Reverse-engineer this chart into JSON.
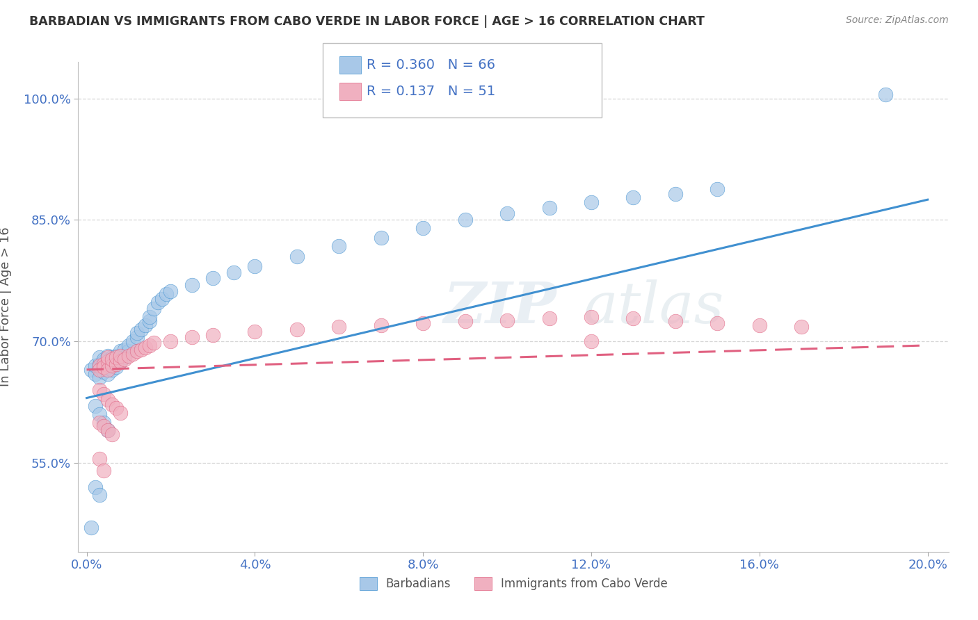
{
  "title": "BARBADIAN VS IMMIGRANTS FROM CABO VERDE IN LABOR FORCE | AGE > 16 CORRELATION CHART",
  "source": "Source: ZipAtlas.com",
  "ylabel": "In Labor Force | Age > 16",
  "watermark": "ZIPatlas",
  "xlim": [
    -0.002,
    0.205
  ],
  "ylim": [
    0.44,
    1.045
  ],
  "xticks": [
    0.0,
    0.04,
    0.08,
    0.12,
    0.16,
    0.2
  ],
  "yticks": [
    0.55,
    0.7,
    0.85,
    1.0
  ],
  "ytick_labels": [
    "55.0%",
    "70.0%",
    "85.0%",
    "100.0%"
  ],
  "xtick_labels": [
    "0.0%",
    "4.0%",
    "8.0%",
    "12.0%",
    "16.0%",
    "20.0%"
  ],
  "blue_R": 0.36,
  "blue_N": 66,
  "pink_R": 0.137,
  "pink_N": 51,
  "blue_color": "#a8c8e8",
  "pink_color": "#f0b0c0",
  "blue_line_color": "#4090d0",
  "pink_line_color": "#e06080",
  "legend_blue_label": "Barbadians",
  "legend_pink_label": "Immigrants from Cabo Verde",
  "blue_scatter_x": [
    0.001,
    0.002,
    0.002,
    0.003,
    0.003,
    0.003,
    0.003,
    0.004,
    0.004,
    0.004,
    0.004,
    0.005,
    0.005,
    0.005,
    0.005,
    0.005,
    0.006,
    0.006,
    0.006,
    0.006,
    0.006,
    0.007,
    0.007,
    0.007,
    0.007,
    0.008,
    0.008,
    0.009,
    0.009,
    0.01,
    0.01,
    0.011,
    0.012,
    0.012,
    0.013,
    0.014,
    0.015,
    0.015,
    0.016,
    0.017,
    0.018,
    0.019,
    0.02,
    0.025,
    0.03,
    0.035,
    0.04,
    0.05,
    0.06,
    0.07,
    0.08,
    0.09,
    0.1,
    0.11,
    0.12,
    0.13,
    0.14,
    0.15,
    0.002,
    0.003,
    0.004,
    0.005,
    0.19,
    0.002,
    0.003,
    0.001
  ],
  "blue_scatter_y": [
    0.665,
    0.66,
    0.67,
    0.668,
    0.672,
    0.655,
    0.68,
    0.675,
    0.662,
    0.67,
    0.678,
    0.668,
    0.672,
    0.66,
    0.675,
    0.682,
    0.67,
    0.675,
    0.665,
    0.68,
    0.672,
    0.678,
    0.668,
    0.674,
    0.682,
    0.675,
    0.688,
    0.68,
    0.69,
    0.688,
    0.695,
    0.7,
    0.705,
    0.71,
    0.715,
    0.72,
    0.725,
    0.73,
    0.74,
    0.748,
    0.752,
    0.758,
    0.762,
    0.77,
    0.778,
    0.785,
    0.793,
    0.805,
    0.818,
    0.828,
    0.84,
    0.85,
    0.858,
    0.865,
    0.872,
    0.878,
    0.882,
    0.888,
    0.62,
    0.61,
    0.6,
    0.59,
    1.005,
    0.52,
    0.51,
    0.47
  ],
  "pink_scatter_x": [
    0.003,
    0.003,
    0.004,
    0.004,
    0.005,
    0.005,
    0.005,
    0.006,
    0.006,
    0.007,
    0.007,
    0.008,
    0.008,
    0.009,
    0.01,
    0.011,
    0.012,
    0.013,
    0.014,
    0.015,
    0.016,
    0.02,
    0.025,
    0.03,
    0.04,
    0.05,
    0.06,
    0.07,
    0.08,
    0.09,
    0.1,
    0.11,
    0.12,
    0.13,
    0.14,
    0.15,
    0.16,
    0.17,
    0.003,
    0.004,
    0.005,
    0.006,
    0.007,
    0.008,
    0.003,
    0.004,
    0.005,
    0.006,
    0.12,
    0.003,
    0.004
  ],
  "pink_scatter_y": [
    0.67,
    0.665,
    0.672,
    0.668,
    0.675,
    0.665,
    0.68,
    0.67,
    0.678,
    0.672,
    0.68,
    0.675,
    0.682,
    0.678,
    0.682,
    0.685,
    0.688,
    0.69,
    0.692,
    0.695,
    0.698,
    0.7,
    0.705,
    0.708,
    0.712,
    0.715,
    0.718,
    0.72,
    0.722,
    0.725,
    0.726,
    0.728,
    0.73,
    0.728,
    0.725,
    0.722,
    0.72,
    0.718,
    0.64,
    0.635,
    0.628,
    0.622,
    0.618,
    0.612,
    0.6,
    0.595,
    0.59,
    0.585,
    0.7,
    0.555,
    0.54
  ],
  "blue_line_x": [
    0.0,
    0.2
  ],
  "blue_line_y": [
    0.63,
    0.875
  ],
  "pink_line_x": [
    0.0,
    0.2
  ],
  "pink_line_y": [
    0.665,
    0.695
  ],
  "background_color": "#ffffff",
  "grid_color": "#cccccc",
  "title_color": "#333333",
  "axis_label_color": "#555555",
  "tick_color": "#4472c4",
  "source_color": "#888888"
}
